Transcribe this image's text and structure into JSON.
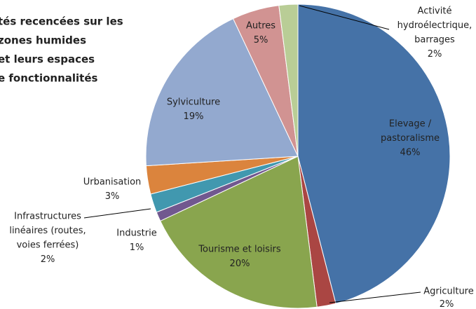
{
  "chart_data": {
    "type": "pie",
    "title_lines": [
      "tés recencées sur les",
      "zones humides",
      "et leurs espaces",
      "e fonctionnalités"
    ],
    "categories": [
      [
        "Elevage /",
        "pastoralisme"
      ],
      [
        "Agriculture"
      ],
      [
        "Tourisme et loisirs"
      ],
      [
        "Industrie"
      ],
      [
        "Infrastructures",
        "linéaires (routes,",
        "voies ferrées)"
      ],
      [
        "Urbanisation"
      ],
      [
        "Sylviculture"
      ],
      [
        "Autres"
      ],
      [
        "Activité",
        "hydroélectrique,",
        "barrages"
      ]
    ],
    "values": [
      46,
      2,
      20,
      1,
      2,
      3,
      19,
      5,
      2
    ],
    "value_labels": [
      "46%",
      "2%",
      "20%",
      "1%",
      "2%",
      "3%",
      "19%",
      "5%",
      "2%"
    ],
    "colors": [
      "#4572a7",
      "#aa4643",
      "#89a54e",
      "#71588f",
      "#4198af",
      "#db843d",
      "#93a9cf",
      "#d19392",
      "#b9cd96"
    ]
  }
}
